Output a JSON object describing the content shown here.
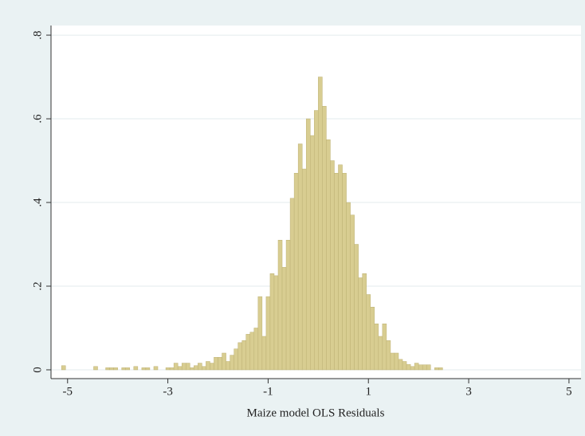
{
  "chart_data": {
    "type": "histogram",
    "x_label": "Maize model OLS Residuals",
    "bins": [
      -5.12,
      -5.04,
      -4.96,
      -4.88,
      -4.8,
      -4.72,
      -4.64,
      -4.56,
      -4.48,
      -4.4,
      -4.32,
      -4.24,
      -4.16,
      -4.08,
      -4,
      -3.92,
      -3.84,
      -3.76,
      -3.68,
      -3.6,
      -3.52,
      -3.44,
      -3.36,
      -3.28,
      -3.2,
      -3.12,
      -3.04,
      -2.96,
      -2.88,
      -2.8,
      -2.72,
      -2.64,
      -2.56,
      -2.48,
      -2.4,
      -2.32,
      -2.24,
      -2.16,
      -2.08,
      -2,
      -1.92,
      -1.84,
      -1.76,
      -1.68,
      -1.6,
      -1.52,
      -1.44,
      -1.36,
      -1.28,
      -1.2,
      -1.12,
      -1.04,
      -0.96,
      -0.88,
      -0.8,
      -0.72,
      -0.64,
      -0.56,
      -0.48,
      -0.4,
      -0.32,
      -0.24,
      -0.16,
      -0.08,
      0,
      0.08,
      0.16,
      0.24,
      0.32,
      0.4,
      0.48,
      0.56,
      0.64,
      0.72,
      0.8,
      0.88,
      0.96,
      1.04,
      1.12,
      1.2,
      1.28,
      1.36,
      1.44,
      1.52,
      1.6,
      1.68,
      1.76,
      1.84,
      1.92,
      2,
      2.08,
      2.16,
      2.24,
      2.32,
      2.4,
      2.48,
      2.56
    ],
    "values": [
      0.01,
      0,
      0,
      0,
      0,
      0,
      0,
      0,
      0.008,
      0,
      0,
      0.005,
      0.005,
      0.005,
      0,
      0.005,
      0.005,
      0,
      0.008,
      0,
      0.005,
      0.005,
      0,
      0.008,
      0,
      0,
      0.005,
      0.005,
      0.016,
      0.008,
      0.016,
      0.016,
      0.005,
      0.01,
      0.016,
      0.008,
      0.02,
      0.016,
      0.03,
      0.03,
      0.04,
      0.02,
      0.035,
      0.05,
      0.065,
      0.07,
      0.085,
      0.09,
      0.1,
      0.175,
      0.08,
      0.175,
      0.23,
      0.225,
      0.31,
      0.245,
      0.31,
      0.41,
      0.47,
      0.54,
      0.48,
      0.6,
      0.56,
      0.62,
      0.7,
      0.63,
      0.55,
      0.5,
      0.47,
      0.49,
      0.47,
      0.4,
      0.37,
      0.3,
      0.22,
      0.23,
      0.18,
      0.15,
      0.11,
      0.08,
      0.11,
      0.07,
      0.04,
      0.04,
      0.025,
      0.02,
      0.013,
      0.008,
      0.016,
      0.012,
      0.012,
      0.012,
      0,
      0.005,
      0.005,
      0
    ],
    "color": "#d8cd91",
    "xlim": [
      -5.33,
      5.24
    ],
    "ylim": [
      -0.021,
      0.823
    ],
    "xticks": [
      -5,
      -3,
      -1,
      1,
      3,
      5
    ],
    "yticks": [
      0,
      {
        "value": 0.2,
        "label": ".2"
      },
      {
        "value": 0.4,
        "label": ".4"
      },
      {
        "value": 0.6,
        "label": ".6"
      },
      {
        "value": 0.8,
        "label": ".8"
      }
    ],
    "grid": true
  }
}
